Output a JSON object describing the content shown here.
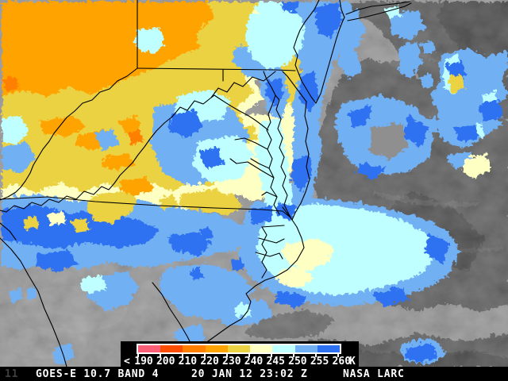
{
  "legend": {
    "lt_symbol": "<",
    "unit": "K",
    "tick_labels": [
      "190",
      "200",
      "210",
      "220",
      "230",
      "240",
      "245",
      "250",
      "255",
      "260"
    ],
    "segment_colors": [
      "#fb5f78",
      "#fc4e00",
      "#ff8000",
      "#ffa300",
      "#ebd243",
      "#feffc2",
      "#bfffff",
      "#72b0f4",
      "#2e71f1"
    ]
  },
  "status_bar": {
    "corner": "11",
    "left": "GOES-E 10.7 BAND 4",
    "center": "20 JAN 12 23:02 Z",
    "right": "NASA LARC"
  },
  "map_colors": {
    "ground": "#8f8f8f",
    "cloud": "#4f4f4f",
    "cloud_light": "#5c5c5c",
    "cloud_dark": "#3a3a3a",
    "wisp": "#a8a8a8",
    "boundary": "#000000"
  }
}
